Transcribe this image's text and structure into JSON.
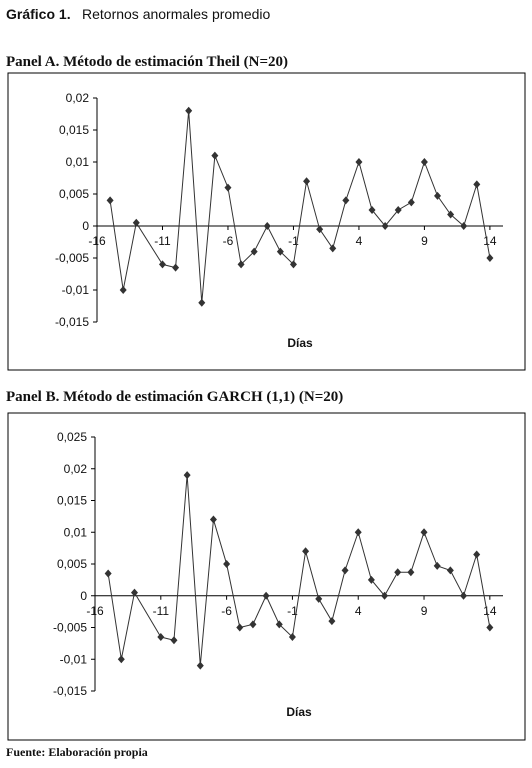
{
  "title_bold": "Gráfico 1.",
  "title": "Retornos anormales promedio",
  "source": "Fuente: Elaboración propia",
  "chart_data": [
    {
      "type": "line",
      "title": "Panel A. Método de estimación Theil (N=20)",
      "xlabel": "Días",
      "color": "#333333",
      "x": [
        -15,
        -14,
        -13,
        -11,
        -10,
        -9,
        -8,
        -7,
        -6,
        -5,
        -4,
        -3,
        -2,
        -1,
        0,
        1,
        2,
        3,
        4,
        5,
        6,
        7,
        8,
        9,
        10,
        11,
        12,
        13,
        14
      ],
      "series": [
        {
          "name": "Theil",
          "color": "#333333",
          "values": [
            0.004,
            -0.01,
            0.0005,
            -0.006,
            -0.0065,
            0.018,
            -0.012,
            0.011,
            0.006,
            -0.006,
            -0.004,
            0,
            -0.004,
            -0.006,
            0.007,
            -0.0005,
            -0.0035,
            0.004,
            0.01,
            0.0025,
            0,
            0.0025,
            0.0037,
            0.01,
            0.0047,
            0.0018,
            0,
            0.0065,
            -0.005
          ]
        }
      ],
      "xlim": [
        -16,
        15
      ],
      "xticks": [
        -16,
        -11,
        -6,
        -1,
        4,
        9,
        14
      ],
      "ylim": [
        -0.015,
        0.02
      ],
      "yticks": [
        {
          "value": 0.02,
          "label": "0,02"
        },
        {
          "value": 0.015,
          "label": "0,015"
        },
        {
          "value": 0.01,
          "label": "0,01"
        },
        {
          "value": 0.005,
          "label": "0,005"
        },
        0,
        {
          "value": -0.005,
          "label": "-0,005"
        },
        {
          "value": -0.01,
          "label": "-0,01"
        },
        {
          "value": -0.015,
          "label": "-0,015"
        }
      ]
    },
    {
      "type": "line",
      "title": "Panel B. Método de estimación GARCH (1,1) (N=20)",
      "xlabel": "Días",
      "color": "#333333",
      "x": [
        -15,
        -14,
        -13,
        -11,
        -10,
        -9,
        -8,
        -7,
        -6,
        -5,
        -4,
        -3,
        -2,
        -1,
        0,
        1,
        2,
        3,
        4,
        5,
        6,
        7,
        8,
        9,
        10,
        11,
        12,
        13,
        14
      ],
      "series": [
        {
          "name": "GARCH",
          "color": "#333333",
          "values": [
            0.0035,
            -0.01,
            0.0005,
            -0.0065,
            -0.007,
            0.019,
            -0.011,
            0.012,
            0.005,
            -0.005,
            -0.0045,
            0,
            -0.0045,
            -0.0065,
            0.007,
            -0.0005,
            -0.004,
            0.004,
            0.01,
            0.0025,
            0,
            0.0037,
            0.0037,
            0.01,
            0.0047,
            0.004,
            0,
            0.0065,
            -0.005
          ]
        }
      ],
      "xlim": [
        -16,
        15
      ],
      "xticks": [
        -16,
        -11,
        -6,
        -1,
        4,
        9,
        14
      ],
      "ylim": [
        -0.015,
        0.025
      ],
      "yticks": [
        {
          "value": 0.025,
          "label": "0,025"
        },
        {
          "value": 0.02,
          "label": "0,02"
        },
        {
          "value": 0.015,
          "label": "0,015"
        },
        {
          "value": 0.01,
          "label": "0,01"
        },
        {
          "value": 0.005,
          "label": "0,005"
        },
        0,
        {
          "value": -0.005,
          "label": "-0,005"
        },
        {
          "value": -0.01,
          "label": "-0,01"
        },
        {
          "value": -0.015,
          "label": "-0,015"
        }
      ]
    }
  ]
}
